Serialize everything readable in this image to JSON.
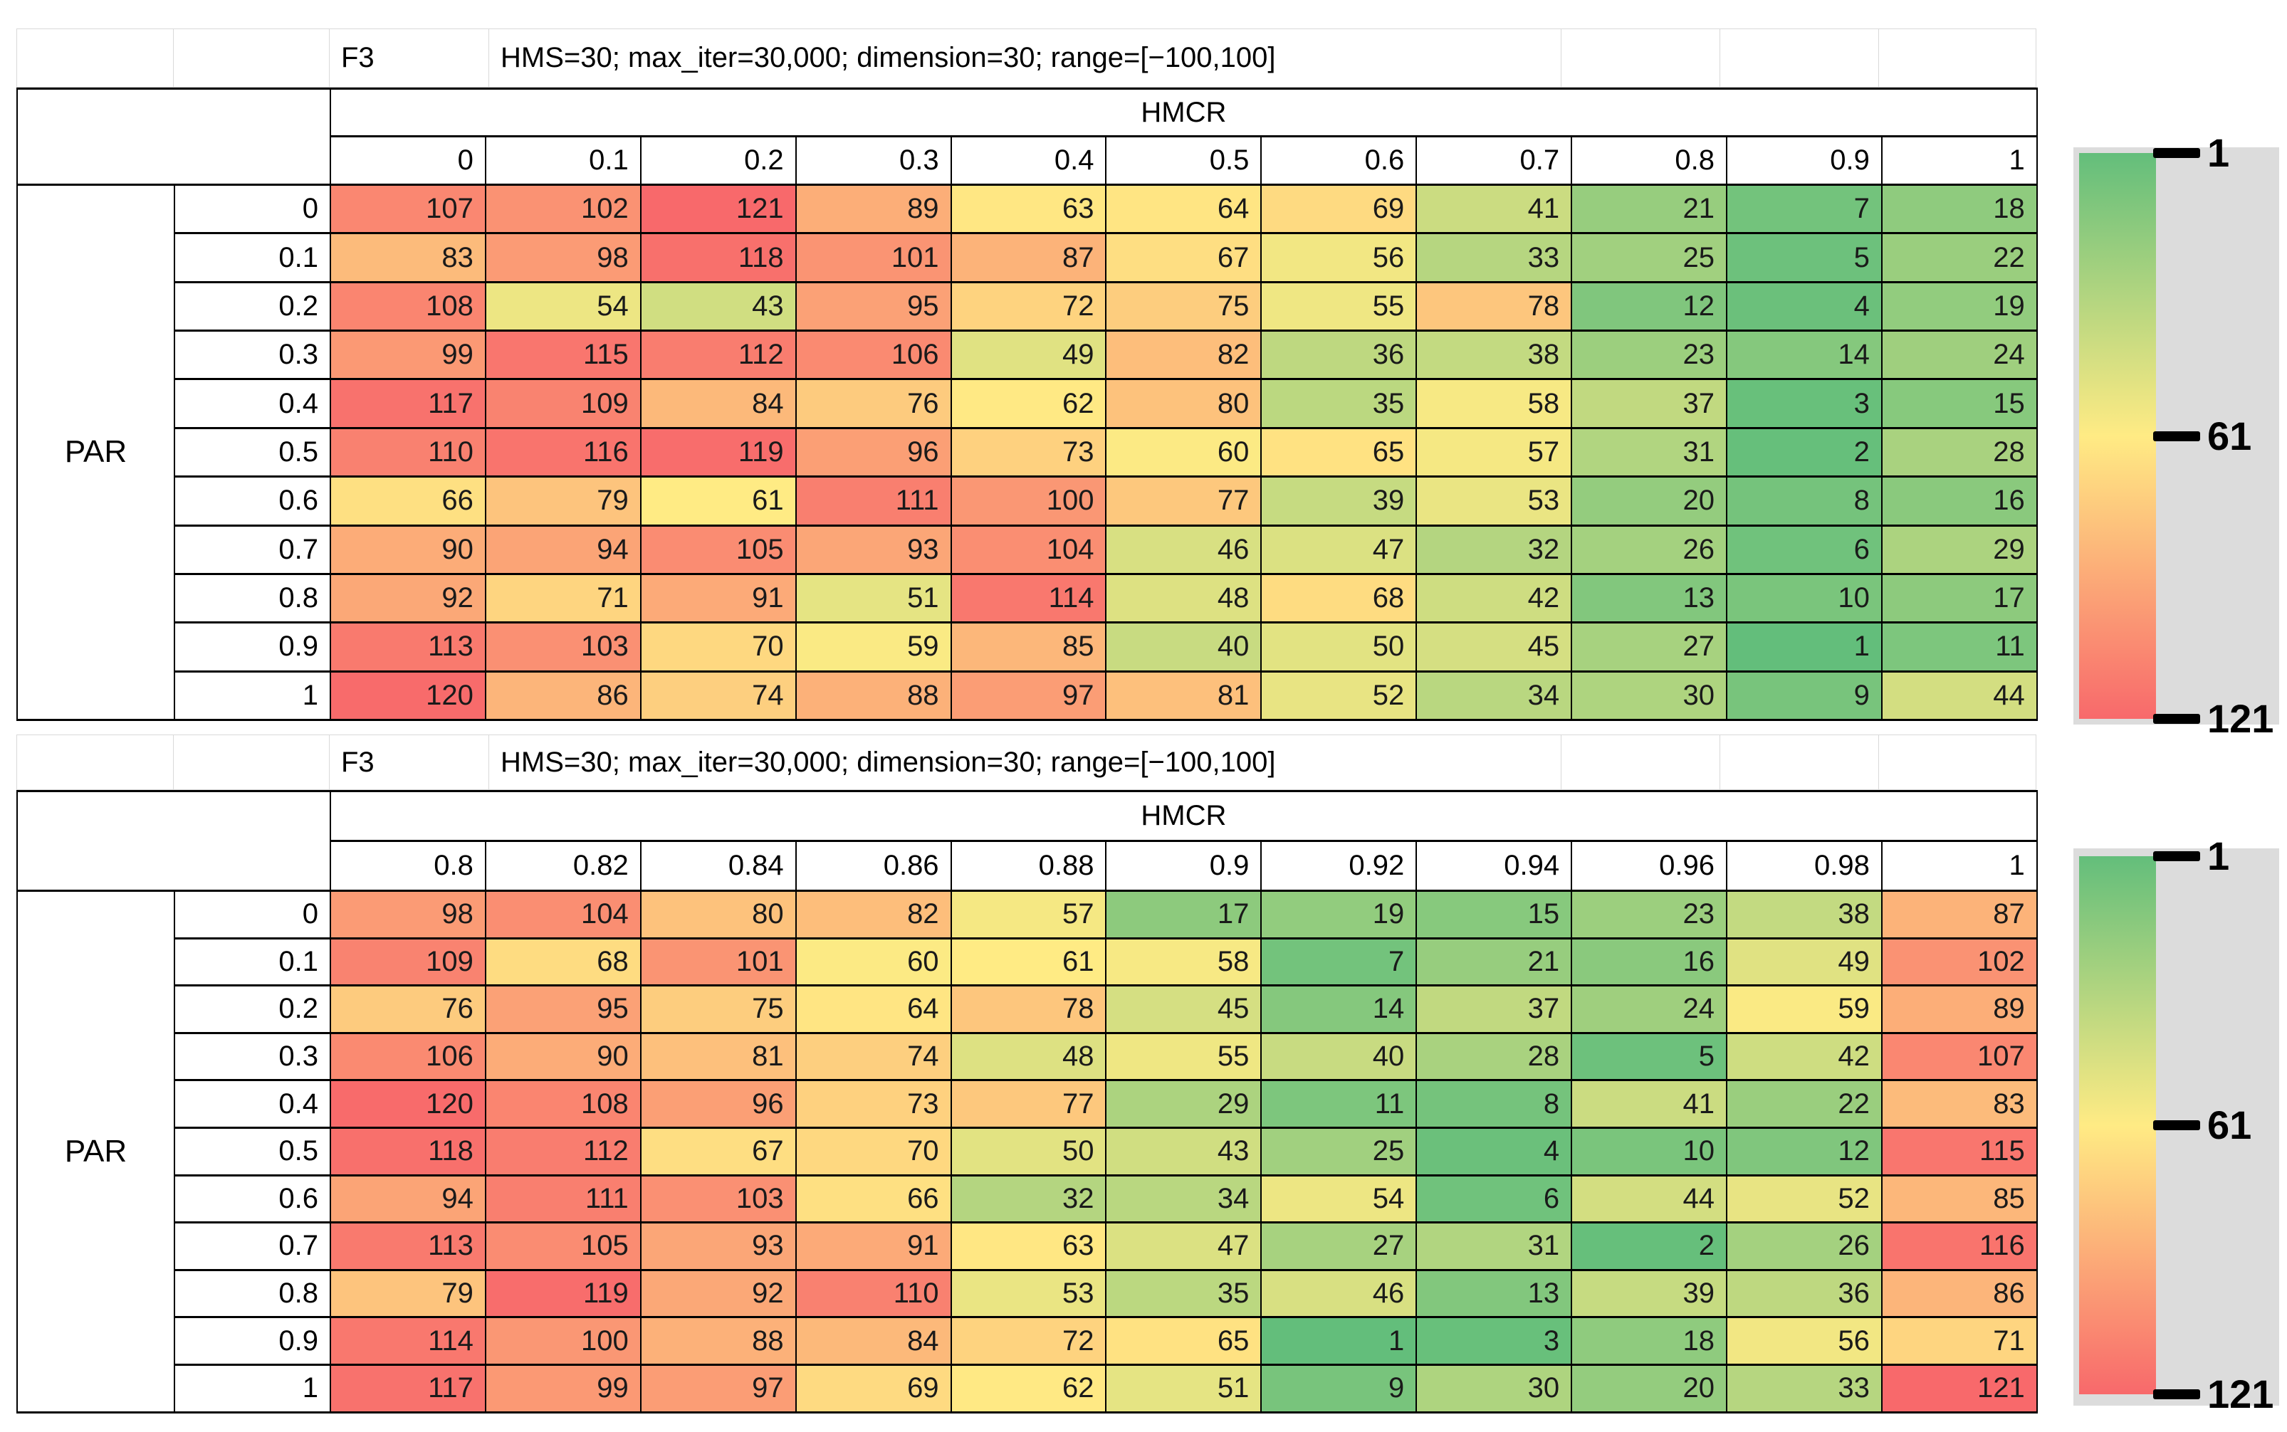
{
  "style": {
    "legend_panel": "#DCDCDC",
    "faint_grid": "#D9D9D9",
    "table_border": "#000000",
    "cell_text": "#1A1A1A"
  },
  "chart_data": [
    {
      "type": "heatmap",
      "title": "F3",
      "subtitle": "HMS=30; max_iter=30,000; dimension=30; range=[−100,100]",
      "x_label": "HMCR",
      "y_label": "PAR",
      "x": [
        "0",
        "0.1",
        "0.2",
        "0.3",
        "0.4",
        "0.5",
        "0.6",
        "0.7",
        "0.8",
        "0.9",
        "1"
      ],
      "y": [
        "0",
        "0.1",
        "0.2",
        "0.3",
        "0.4",
        "0.5",
        "0.6",
        "0.7",
        "0.8",
        "0.9",
        "1"
      ],
      "values": [
        [
          107,
          102,
          121,
          89,
          63,
          64,
          69,
          41,
          21,
          7,
          18
        ],
        [
          83,
          98,
          118,
          101,
          87,
          67,
          56,
          33,
          25,
          5,
          22
        ],
        [
          108,
          54,
          43,
          95,
          72,
          75,
          55,
          78,
          12,
          4,
          19
        ],
        [
          99,
          115,
          112,
          106,
          49,
          82,
          36,
          38,
          23,
          14,
          24
        ],
        [
          117,
          109,
          84,
          76,
          62,
          80,
          35,
          58,
          37,
          3,
          15
        ],
        [
          110,
          116,
          119,
          96,
          73,
          60,
          65,
          57,
          31,
          2,
          28
        ],
        [
          66,
          79,
          61,
          111,
          100,
          77,
          39,
          53,
          20,
          8,
          16
        ],
        [
          90,
          94,
          105,
          93,
          104,
          46,
          47,
          32,
          26,
          6,
          29
        ],
        [
          92,
          71,
          91,
          51,
          114,
          48,
          68,
          42,
          13,
          10,
          17
        ],
        [
          113,
          103,
          70,
          59,
          85,
          40,
          50,
          45,
          27,
          1,
          11
        ],
        [
          120,
          86,
          74,
          88,
          97,
          81,
          52,
          34,
          30,
          9,
          44
        ]
      ],
      "color_scale": {
        "min_value": 1,
        "mid_value": 61,
        "max_value": 121,
        "min_color": "#63BE7B",
        "mid_color": "#FFEB84",
        "max_color": "#F8696B"
      },
      "legend_ticks": [
        "1",
        "61",
        "121"
      ],
      "legend_position": "right"
    },
    {
      "type": "heatmap",
      "title": "F3",
      "subtitle": "HMS=30; max_iter=30,000; dimension=30; range=[−100,100]",
      "x_label": "HMCR",
      "y_label": "PAR",
      "x": [
        "0.8",
        "0.82",
        "0.84",
        "0.86",
        "0.88",
        "0.9",
        "0.92",
        "0.94",
        "0.96",
        "0.98",
        "1"
      ],
      "y": [
        "0",
        "0.1",
        "0.2",
        "0.3",
        "0.4",
        "0.5",
        "0.6",
        "0.7",
        "0.8",
        "0.9",
        "1"
      ],
      "values": [
        [
          98,
          104,
          80,
          82,
          57,
          17,
          19,
          15,
          23,
          38,
          87
        ],
        [
          109,
          68,
          101,
          60,
          61,
          58,
          7,
          21,
          16,
          49,
          102
        ],
        [
          76,
          95,
          75,
          64,
          78,
          45,
          14,
          37,
          24,
          59,
          89
        ],
        [
          106,
          90,
          81,
          74,
          48,
          55,
          40,
          28,
          5,
          42,
          107
        ],
        [
          120,
          108,
          96,
          73,
          77,
          29,
          11,
          8,
          41,
          22,
          83
        ],
        [
          118,
          112,
          67,
          70,
          50,
          43,
          25,
          4,
          10,
          12,
          115
        ],
        [
          94,
          111,
          103,
          66,
          32,
          34,
          54,
          6,
          44,
          52,
          85
        ],
        [
          113,
          105,
          93,
          91,
          63,
          47,
          27,
          31,
          2,
          26,
          116
        ],
        [
          79,
          119,
          92,
          110,
          53,
          35,
          46,
          13,
          39,
          36,
          86
        ],
        [
          114,
          100,
          88,
          84,
          72,
          65,
          1,
          3,
          18,
          56,
          71
        ],
        [
          117,
          99,
          97,
          69,
          62,
          51,
          9,
          30,
          20,
          33,
          121
        ]
      ],
      "color_scale": {
        "min_value": 1,
        "mid_value": 61,
        "max_value": 121,
        "min_color": "#63BE7B",
        "mid_color": "#FFEB84",
        "max_color": "#F8696B"
      },
      "legend_ticks": [
        "1",
        "61",
        "121"
      ],
      "legend_position": "right"
    }
  ]
}
